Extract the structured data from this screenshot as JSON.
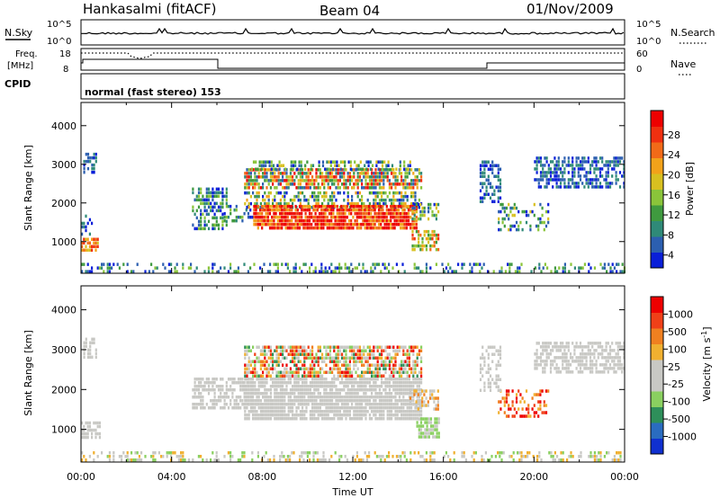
{
  "header": {
    "station": "Hankasalmi (fitACF)",
    "beam": "Beam 04",
    "date": "01/Nov/2009"
  },
  "strip": {
    "nsky_label": "N.Sky",
    "nsearch_label": "N.Search",
    "nsky_ticks": [
      "10^5",
      "10^0"
    ],
    "nsearch_ticks": [
      "10^5",
      "10^0"
    ],
    "freq_label": "Freq.",
    "freq_unit": "[MHz]",
    "freq_ticks": [
      "18",
      "8"
    ],
    "nave_label": "Nave",
    "nave_ticks": [
      "60",
      "0"
    ],
    "cpid_label": "CPID",
    "cpid_text": "normal (fast stereo) 153"
  },
  "colors": {
    "power": [
      "#0a1fd8",
      "#2c5fb0",
      "#2f8a78",
      "#3f9a3f",
      "#8ac43a",
      "#d8c020",
      "#f2a21a",
      "#f26a18",
      "#f03010",
      "#ee0000"
    ],
    "velocity": [
      "#1030d0",
      "#2a6cc0",
      "#2e8f5a",
      "#8ad060",
      "#c8c8c4",
      "#c8c8c4",
      "#f0b030",
      "#f08020",
      "#f04018",
      "#ee0000"
    ]
  },
  "chart_data": [
    {
      "type": "heatmap",
      "name": "power",
      "xlabel": "",
      "ylabel": "Slant Range [km]",
      "xlim": [
        0,
        24
      ],
      "ylim": [
        180,
        4600
      ],
      "x_ticks": [
        "00:00",
        "04:00",
        "08:00",
        "12:00",
        "16:00",
        "20:00",
        "00:00"
      ],
      "y_ticks": [
        1000,
        2000,
        3000,
        4000
      ],
      "colorbar_label": "Power [dB]",
      "colorbar_ticks": [
        4,
        8,
        12,
        16,
        20,
        24,
        28
      ],
      "regions": [
        {
          "t0": 0.1,
          "t1": 0.7,
          "r0": 2800,
          "r1": 3300,
          "v0": 0,
          "v1": 2,
          "d": 0.5
        },
        {
          "t0": 0.0,
          "t1": 0.7,
          "r0": 800,
          "r1": 1100,
          "v0": 5,
          "v1": 8,
          "d": 0.6
        },
        {
          "t0": 0.0,
          "t1": 0.5,
          "r0": 1100,
          "r1": 1700,
          "v0": 0,
          "v1": 2,
          "d": 0.3
        },
        {
          "t0": 4.9,
          "t1": 6.4,
          "r0": 1300,
          "r1": 2400,
          "v0": 0,
          "v1": 4,
          "d": 0.55
        },
        {
          "t0": 6.3,
          "t1": 7.6,
          "r0": 1500,
          "r1": 1950,
          "v0": 0,
          "v1": 4,
          "d": 0.45
        },
        {
          "t0": 7.2,
          "t1": 15.0,
          "r0": 2350,
          "r1": 2900,
          "v0": 1,
          "v1": 9,
          "d": 0.75
        },
        {
          "t0": 7.5,
          "t1": 14.5,
          "r0": 2900,
          "r1": 3100,
          "v0": 0,
          "v1": 5,
          "d": 0.5
        },
        {
          "t0": 7.2,
          "t1": 15.0,
          "r0": 1900,
          "r1": 2300,
          "v0": 0,
          "v1": 6,
          "d": 0.55
        },
        {
          "t0": 7.6,
          "t1": 14.8,
          "r0": 1300,
          "r1": 1950,
          "v0": 6,
          "v1": 10,
          "d": 0.9
        },
        {
          "t0": 14.6,
          "t1": 15.8,
          "r0": 1600,
          "r1": 2000,
          "v0": 0,
          "v1": 5,
          "d": 0.5
        },
        {
          "t0": 14.6,
          "t1": 15.8,
          "r0": 800,
          "r1": 1300,
          "v0": 3,
          "v1": 8,
          "d": 0.6
        },
        {
          "t0": 18.4,
          "t1": 20.6,
          "r0": 1300,
          "r1": 2000,
          "v0": 0,
          "v1": 5,
          "d": 0.35
        },
        {
          "t0": 20.0,
          "t1": 24.0,
          "r0": 2400,
          "r1": 3200,
          "v0": 0,
          "v1": 2,
          "d": 0.6
        },
        {
          "t0": 17.6,
          "t1": 18.5,
          "r0": 2000,
          "r1": 3100,
          "v0": 0,
          "v1": 2,
          "d": 0.45
        },
        {
          "t0": 0.0,
          "t1": 24.0,
          "r0": 180,
          "r1": 450,
          "v0": 0,
          "v1": 4,
          "d": 0.3
        }
      ]
    },
    {
      "type": "heatmap",
      "name": "velocity",
      "xlabel": "Time UT",
      "ylabel": "Slant Range [km]",
      "xlim": [
        0,
        24
      ],
      "ylim": [
        180,
        4600
      ],
      "x_ticks": [
        "00:00",
        "04:00",
        "08:00",
        "12:00",
        "16:00",
        "20:00",
        "00:00"
      ],
      "y_ticks": [
        1000,
        2000,
        3000,
        4000
      ],
      "colorbar_label": "Velocity [m s^-1]",
      "colorbar_ticks": [
        "1000",
        "500",
        "100",
        "25",
        "-25",
        "-100",
        "-500",
        "-1000"
      ],
      "regions": [
        {
          "t0": 0.1,
          "t1": 0.7,
          "r0": 2800,
          "r1": 3300,
          "v0": 4,
          "v1": 5,
          "d": 0.55
        },
        {
          "t0": 0.0,
          "t1": 0.8,
          "r0": 800,
          "r1": 1200,
          "v0": 4,
          "v1": 5,
          "d": 0.7
        },
        {
          "t0": 4.9,
          "t1": 7.4,
          "r0": 1500,
          "r1": 2300,
          "v0": 4,
          "v1": 5,
          "d": 0.6
        },
        {
          "t0": 7.2,
          "t1": 15.0,
          "r0": 1300,
          "r1": 2300,
          "v0": 4,
          "v1": 5,
          "d": 0.85
        },
        {
          "t0": 7.2,
          "t1": 15.0,
          "r0": 2350,
          "r1": 3100,
          "v0": 2,
          "v1": 9,
          "d": 0.7
        },
        {
          "t0": 14.8,
          "t1": 15.8,
          "r0": 800,
          "r1": 1300,
          "v0": 3,
          "v1": 4,
          "d": 0.75
        },
        {
          "t0": 14.5,
          "t1": 15.8,
          "r0": 1500,
          "r1": 2000,
          "v0": 4,
          "v1": 7,
          "d": 0.5
        },
        {
          "t0": 18.4,
          "t1": 20.6,
          "r0": 1300,
          "r1": 2000,
          "v0": 6,
          "v1": 9,
          "d": 0.35
        },
        {
          "t0": 20.0,
          "t1": 24.0,
          "r0": 2400,
          "r1": 3200,
          "v0": 4,
          "v1": 5,
          "d": 0.65
        },
        {
          "t0": 17.6,
          "t1": 18.5,
          "r0": 2000,
          "r1": 3100,
          "v0": 4,
          "v1": 5,
          "d": 0.45
        },
        {
          "t0": 0.0,
          "t1": 24.0,
          "r0": 180,
          "r1": 450,
          "v0": 3,
          "v1": 6,
          "d": 0.35
        }
      ]
    }
  ]
}
